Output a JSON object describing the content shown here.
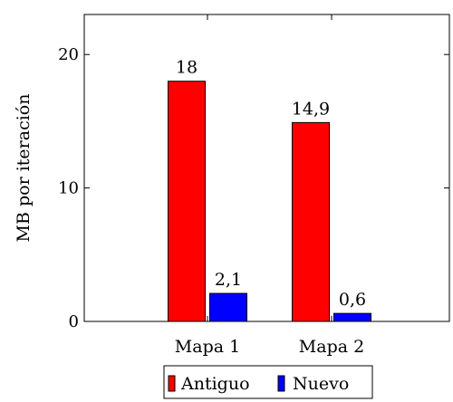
{
  "chart_data": {
    "type": "bar",
    "title": "",
    "xlabel": "",
    "ylabel": "MB por iteración",
    "categories": [
      "Mapa 1",
      "Mapa 2"
    ],
    "series": [
      {
        "name": "Antiguo",
        "color": "#ff0000",
        "values": [
          18,
          14.9
        ],
        "labels": [
          "18",
          "14,9"
        ]
      },
      {
        "name": "Nuevo",
        "color": "#0000ff",
        "values": [
          2.1,
          0.6
        ],
        "labels": [
          "2,1",
          "0,6"
        ]
      }
    ],
    "ylim": [
      0,
      23
    ],
    "yticks": [
      0,
      10,
      20
    ],
    "ytick_labels": [
      "0",
      "10",
      "20"
    ],
    "grid": false,
    "legend_position": "bottom-center"
  }
}
